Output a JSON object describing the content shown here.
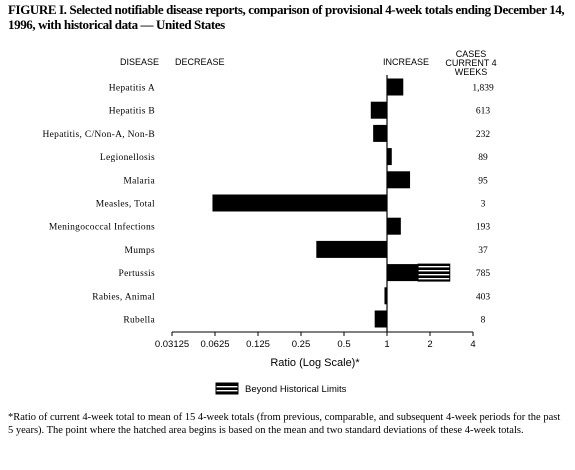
{
  "title": "FIGURE I. Selected notifiable disease reports, comparison of provisional 4-week totals ending December 14, 1996, with historical data — United States",
  "headers": {
    "disease": "DISEASE",
    "decrease": "DECREASE",
    "increase": "INCREASE",
    "cases_current": "CASES CURRENT 4 WEEKS"
  },
  "legend": {
    "beyond_limits": "Beyond Historical Limits"
  },
  "footnote": "*Ratio of current 4-week total to mean of 15 4-week totals (from previous, comparable, and subsequent 4-week periods for the past 5 years). The point where the hatched area begins is based on the mean and two standard deviations of these 4-week totals.",
  "chart_data": {
    "type": "bar",
    "orientation": "horizontal",
    "xlabel": "Ratio (Log Scale)*",
    "x_scale": "log2",
    "xlim": [
      0.03125,
      4
    ],
    "reference_line": 1,
    "ticks": [
      {
        "value": 0.03125,
        "label": "0.03125"
      },
      {
        "value": 0.0625,
        "label": "0.0625"
      },
      {
        "value": 0.125,
        "label": "0.125"
      },
      {
        "value": 0.25,
        "label": "0.25"
      },
      {
        "value": 0.5,
        "label": "0.5"
      },
      {
        "value": 1,
        "label": "1"
      },
      {
        "value": 2,
        "label": "2"
      },
      {
        "value": 4,
        "label": "4"
      }
    ],
    "categories": [
      "Hepatitis A",
      "Hepatitis B",
      "Hepatitis, C/Non-A, Non-B",
      "Legionellosis",
      "Malaria",
      "Measles, Total",
      "Meningococcal Infections",
      "Mumps",
      "Pertussis",
      "Rabies, Animal",
      "Rubella"
    ],
    "values": [
      1.3,
      0.77,
      0.8,
      1.08,
      1.45,
      0.06,
      1.25,
      0.32,
      2.75,
      0.96,
      0.82
    ],
    "beyond_limits_from": [
      null,
      null,
      null,
      null,
      null,
      null,
      null,
      null,
      1.65,
      null,
      null
    ],
    "cases": [
      "1,839",
      "613",
      "232",
      "89",
      "95",
      "3",
      "193",
      "37",
      "785",
      "403",
      "8"
    ]
  }
}
